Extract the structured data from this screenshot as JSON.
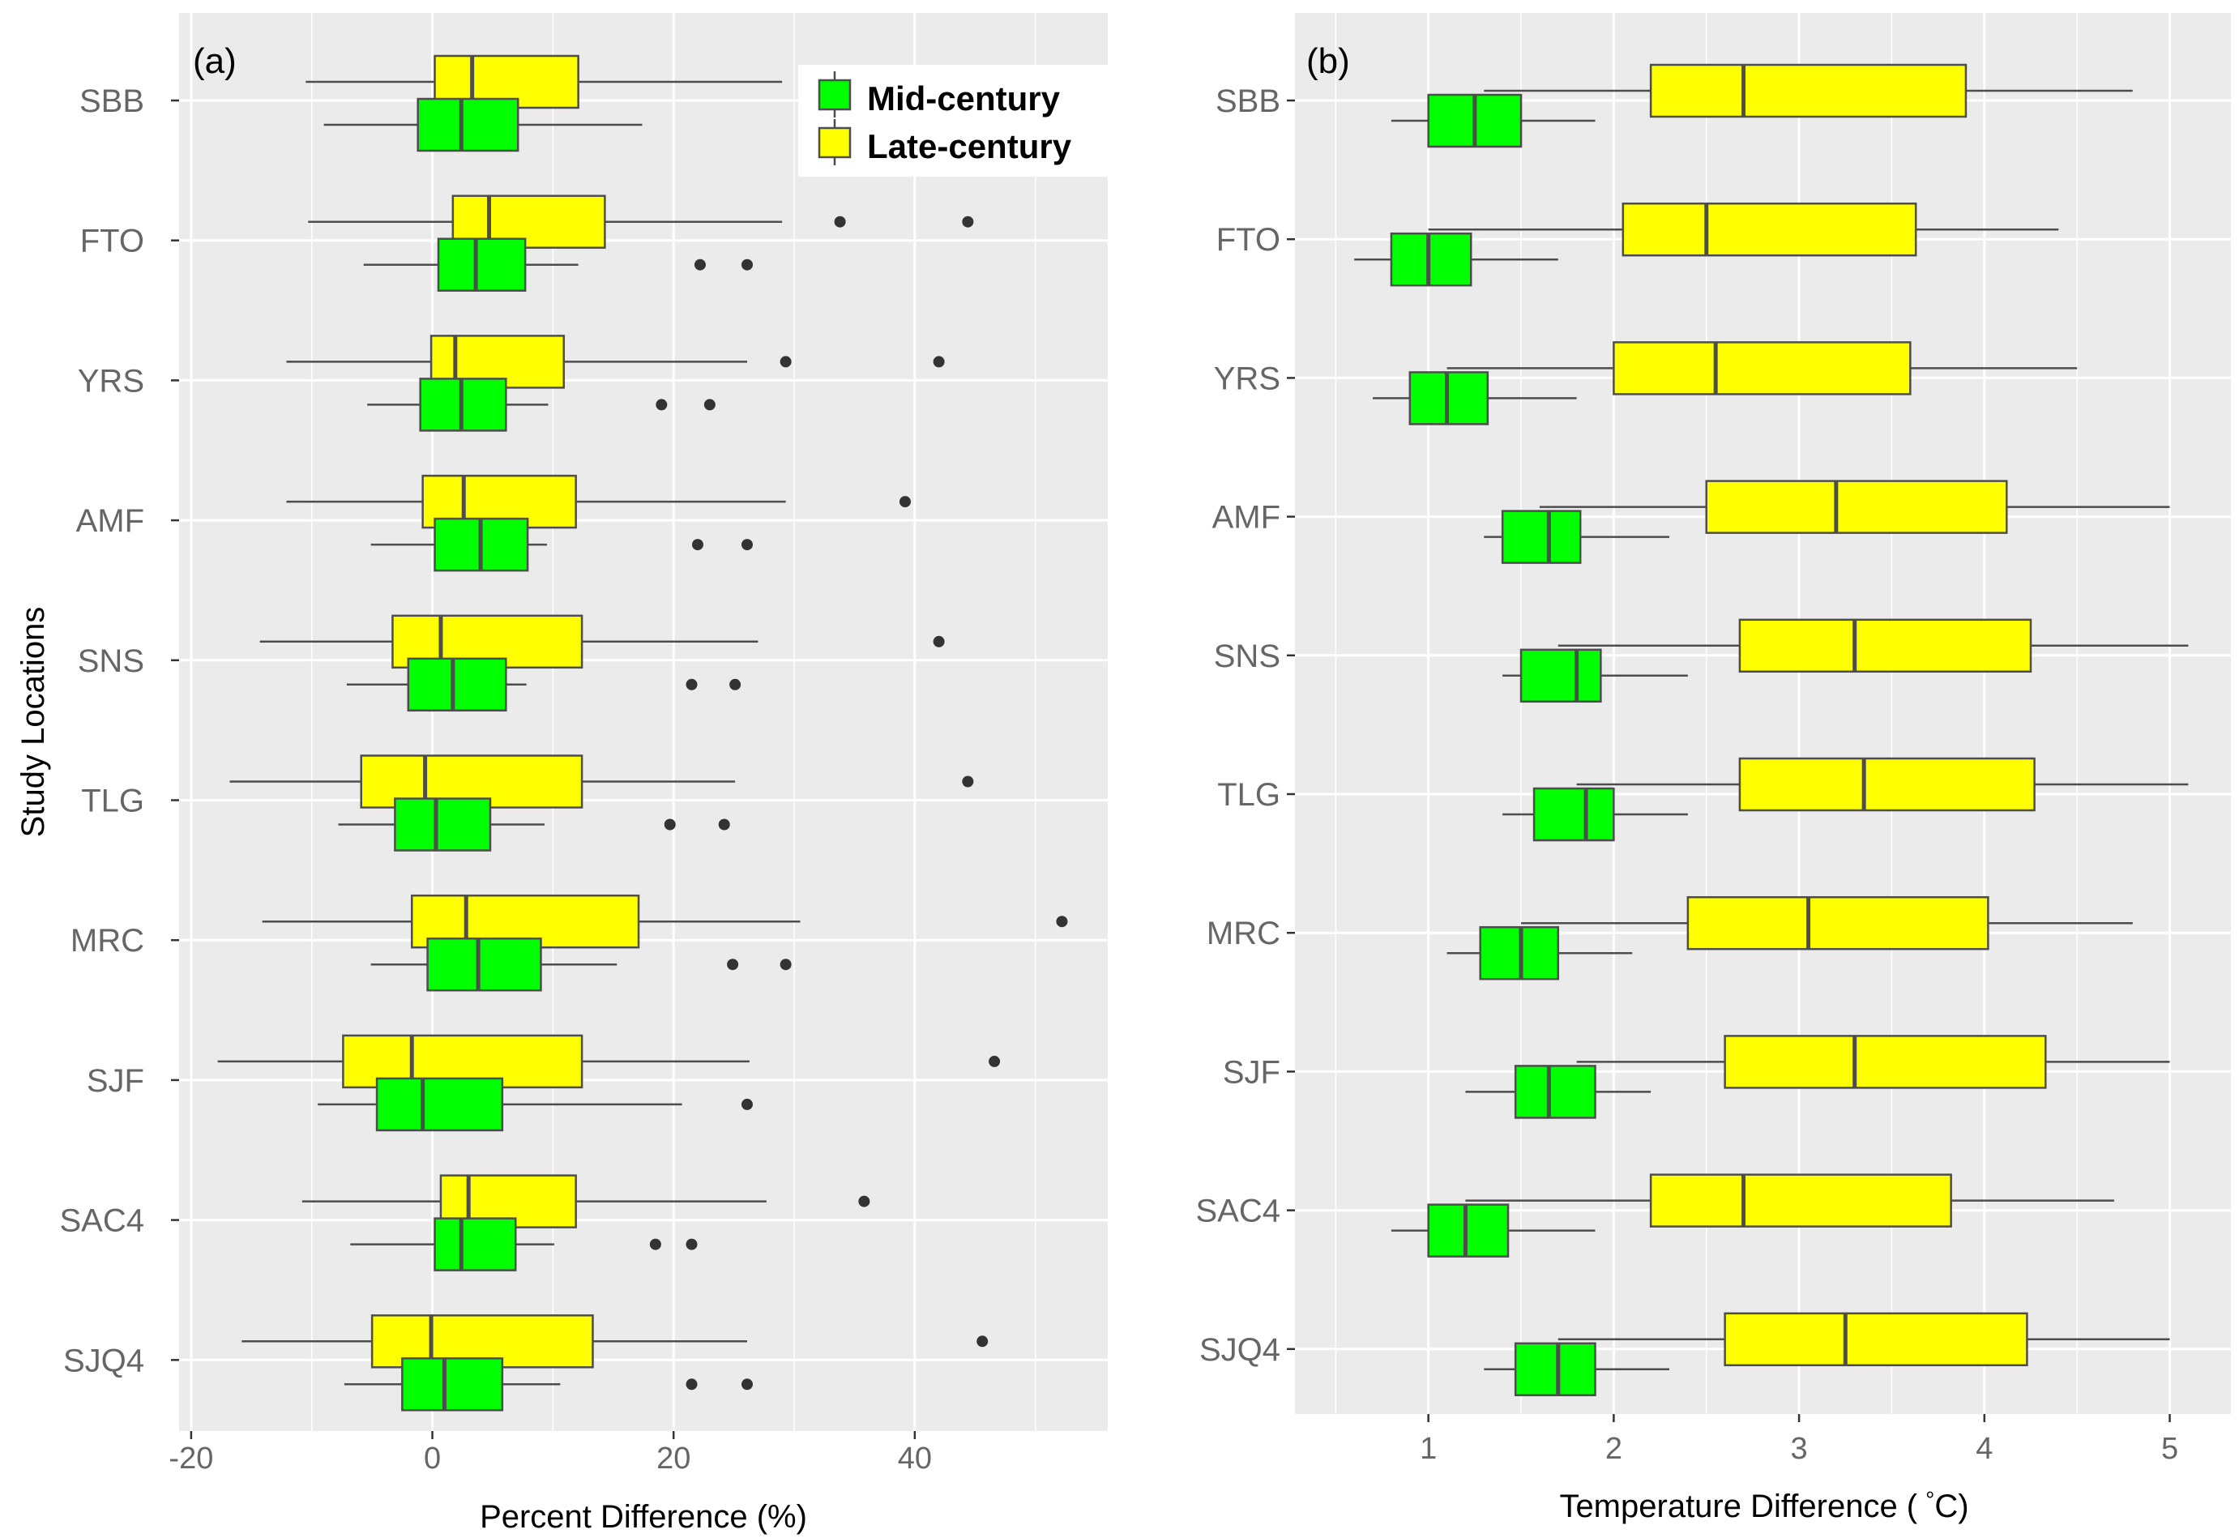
{
  "chart_data": [
    {
      "type": "boxplot",
      "panel_label": "(a)",
      "ylabel": "Study  Locations",
      "xlabel": "Percent Difference (%)",
      "xlim": [
        -21,
        56
      ],
      "xticks": [
        -20,
        0,
        20,
        40
      ],
      "xtick_labels": [
        "-20",
        "0",
        "20",
        "40"
      ],
      "grid": true,
      "legend_position": "top-right",
      "categories": [
        "SBB",
        "FTO",
        "YRS",
        "AMF",
        "SNS",
        "TLG",
        "MRC",
        "SJF",
        "SAC4",
        "SJQ4"
      ],
      "series": [
        {
          "name": "Late-century",
          "color": "#FFFF00",
          "boxes": [
            {
              "whisker_low": -10.5,
              "q1": 0.2,
              "median": 3.3,
              "q3": 12.1,
              "whisker_high": 29.0,
              "outliers": []
            },
            {
              "whisker_low": -10.3,
              "q1": 1.7,
              "median": 4.7,
              "q3": 14.3,
              "whisker_high": 29.0,
              "outliers": [
                33.8,
                44.4
              ]
            },
            {
              "whisker_low": -12.1,
              "q1": -0.1,
              "median": 1.9,
              "q3": 10.9,
              "whisker_high": 26.1,
              "outliers": [
                29.3,
                42.0
              ]
            },
            {
              "whisker_low": -12.1,
              "q1": -0.8,
              "median": 2.6,
              "q3": 11.9,
              "whisker_high": 29.3,
              "outliers": [
                39.2
              ]
            },
            {
              "whisker_low": -14.3,
              "q1": -3.3,
              "median": 0.7,
              "q3": 12.4,
              "whisker_high": 27.0,
              "outliers": [
                42.0
              ]
            },
            {
              "whisker_low": -16.8,
              "q1": -5.9,
              "median": -0.6,
              "q3": 12.4,
              "whisker_high": 25.1,
              "outliers": [
                44.4
              ]
            },
            {
              "whisker_low": -14.1,
              "q1": -1.7,
              "median": 2.8,
              "q3": 17.1,
              "whisker_high": 30.5,
              "outliers": [
                52.2
              ]
            },
            {
              "whisker_low": -17.8,
              "q1": -7.4,
              "median": -1.7,
              "q3": 12.4,
              "whisker_high": 26.3,
              "outliers": [
                46.6
              ]
            },
            {
              "whisker_low": -10.8,
              "q1": 0.7,
              "median": 3.0,
              "q3": 11.9,
              "whisker_high": 27.7,
              "outliers": [
                35.8
              ]
            },
            {
              "whisker_low": -15.8,
              "q1": -5.0,
              "median": -0.1,
              "q3": 13.3,
              "whisker_high": 26.1,
              "outliers": [
                45.6
              ]
            }
          ]
        },
        {
          "name": "Mid-century",
          "color": "#00FF00",
          "boxes": [
            {
              "whisker_low": -9.0,
              "q1": -1.2,
              "median": 2.4,
              "q3": 7.1,
              "whisker_high": 17.4,
              "outliers": []
            },
            {
              "whisker_low": -5.7,
              "q1": 0.5,
              "median": 3.6,
              "q3": 7.7,
              "whisker_high": 12.1,
              "outliers": [
                22.2,
                26.1
              ]
            },
            {
              "whisker_low": -5.4,
              "q1": -1.0,
              "median": 2.4,
              "q3": 6.1,
              "whisker_high": 9.6,
              "outliers": [
                19.0,
                23.0
              ]
            },
            {
              "whisker_low": -5.1,
              "q1": 0.2,
              "median": 4.0,
              "q3": 7.9,
              "whisker_high": 9.5,
              "outliers": [
                22.0,
                26.1
              ]
            },
            {
              "whisker_low": -7.1,
              "q1": -2.0,
              "median": 1.7,
              "q3": 6.1,
              "whisker_high": 7.8,
              "outliers": [
                21.5,
                25.1
              ]
            },
            {
              "whisker_low": -7.8,
              "q1": -3.1,
              "median": 0.3,
              "q3": 4.8,
              "whisker_high": 9.3,
              "outliers": [
                19.7,
                24.2
              ]
            },
            {
              "whisker_low": -5.1,
              "q1": -0.4,
              "median": 3.8,
              "q3": 9.0,
              "whisker_high": 15.3,
              "outliers": [
                24.9,
                29.3
              ]
            },
            {
              "whisker_low": -9.5,
              "q1": -4.6,
              "median": -0.8,
              "q3": 5.8,
              "whisker_high": 20.7,
              "outliers": [
                26.1
              ]
            },
            {
              "whisker_low": -6.8,
              "q1": 0.2,
              "median": 2.4,
              "q3": 6.9,
              "whisker_high": 10.1,
              "outliers": [
                18.5,
                21.5
              ]
            },
            {
              "whisker_low": -7.3,
              "q1": -2.5,
              "median": 1.0,
              "q3": 5.8,
              "whisker_high": 10.6,
              "outliers": [
                21.5,
                26.1
              ]
            }
          ]
        }
      ],
      "legend": [
        "Mid-century",
        "Late-century"
      ]
    },
    {
      "type": "boxplot",
      "panel_label": "(b)",
      "ylabel": "",
      "xlabel": "Temperature Difference (",
      "xlabel_degree": "°",
      "xlabel_unit": "C)",
      "xlim": [
        0.28,
        5.33
      ],
      "xticks": [
        1,
        2,
        3,
        4,
        5
      ],
      "xtick_labels": [
        "1",
        "2",
        "3",
        "4",
        "5"
      ],
      "grid": true,
      "categories": [
        "SBB",
        "FTO",
        "YRS",
        "AMF",
        "SNS",
        "TLG",
        "MRC",
        "SJF",
        "SAC4",
        "SJQ4"
      ],
      "series": [
        {
          "name": "Late-century",
          "color": "#FFFF00",
          "boxes": [
            {
              "whisker_low": 1.3,
              "q1": 2.2,
              "median": 2.7,
              "q3": 3.9,
              "whisker_high": 4.8,
              "outliers": []
            },
            {
              "whisker_low": 1.0,
              "q1": 2.05,
              "median": 2.5,
              "q3": 3.63,
              "whisker_high": 4.4,
              "outliers": []
            },
            {
              "whisker_low": 1.1,
              "q1": 2.0,
              "median": 2.55,
              "q3": 3.6,
              "whisker_high": 4.5,
              "outliers": []
            },
            {
              "whisker_low": 1.6,
              "q1": 2.5,
              "median": 3.2,
              "q3": 4.12,
              "whisker_high": 5.0,
              "outliers": []
            },
            {
              "whisker_low": 1.7,
              "q1": 2.68,
              "median": 3.3,
              "q3": 4.25,
              "whisker_high": 5.1,
              "outliers": []
            },
            {
              "whisker_low": 1.8,
              "q1": 2.68,
              "median": 3.35,
              "q3": 4.27,
              "whisker_high": 5.1,
              "outliers": []
            },
            {
              "whisker_low": 1.5,
              "q1": 2.4,
              "median": 3.05,
              "q3": 4.02,
              "whisker_high": 4.8,
              "outliers": []
            },
            {
              "whisker_low": 1.8,
              "q1": 2.6,
              "median": 3.3,
              "q3": 4.33,
              "whisker_high": 5.0,
              "outliers": []
            },
            {
              "whisker_low": 1.2,
              "q1": 2.2,
              "median": 2.7,
              "q3": 3.82,
              "whisker_high": 4.7,
              "outliers": []
            },
            {
              "whisker_low": 1.7,
              "q1": 2.6,
              "median": 3.25,
              "q3": 4.23,
              "whisker_high": 5.0,
              "outliers": []
            }
          ]
        },
        {
          "name": "Mid-century",
          "color": "#00FF00",
          "boxes": [
            {
              "whisker_low": 0.8,
              "q1": 1.0,
              "median": 1.25,
              "q3": 1.5,
              "whisker_high": 1.9,
              "outliers": []
            },
            {
              "whisker_low": 0.6,
              "q1": 0.8,
              "median": 1.0,
              "q3": 1.23,
              "whisker_high": 1.7,
              "outliers": []
            },
            {
              "whisker_low": 0.7,
              "q1": 0.9,
              "median": 1.1,
              "q3": 1.32,
              "whisker_high": 1.8,
              "outliers": []
            },
            {
              "whisker_low": 1.3,
              "q1": 1.4,
              "median": 1.65,
              "q3": 1.82,
              "whisker_high": 2.3,
              "outliers": []
            },
            {
              "whisker_low": 1.4,
              "q1": 1.5,
              "median": 1.8,
              "q3": 1.93,
              "whisker_high": 2.4,
              "outliers": []
            },
            {
              "whisker_low": 1.4,
              "q1": 1.57,
              "median": 1.85,
              "q3": 2.0,
              "whisker_high": 2.4,
              "outliers": []
            },
            {
              "whisker_low": 1.1,
              "q1": 1.28,
              "median": 1.5,
              "q3": 1.7,
              "whisker_high": 2.1,
              "outliers": []
            },
            {
              "whisker_low": 1.2,
              "q1": 1.47,
              "median": 1.65,
              "q3": 1.9,
              "whisker_high": 2.2,
              "outliers": []
            },
            {
              "whisker_low": 0.8,
              "q1": 1.0,
              "median": 1.2,
              "q3": 1.43,
              "whisker_high": 1.9,
              "outliers": []
            },
            {
              "whisker_low": 1.3,
              "q1": 1.47,
              "median": 1.7,
              "q3": 1.9,
              "whisker_high": 2.3,
              "outliers": []
            }
          ]
        }
      ]
    }
  ],
  "colors": {
    "panel_bg": "#EBEBEB",
    "grid": "#FFFFFF",
    "box_border": "#4D4D4D",
    "axis_text": "#666666",
    "mid": "#00FF00",
    "late": "#FFFF00"
  }
}
